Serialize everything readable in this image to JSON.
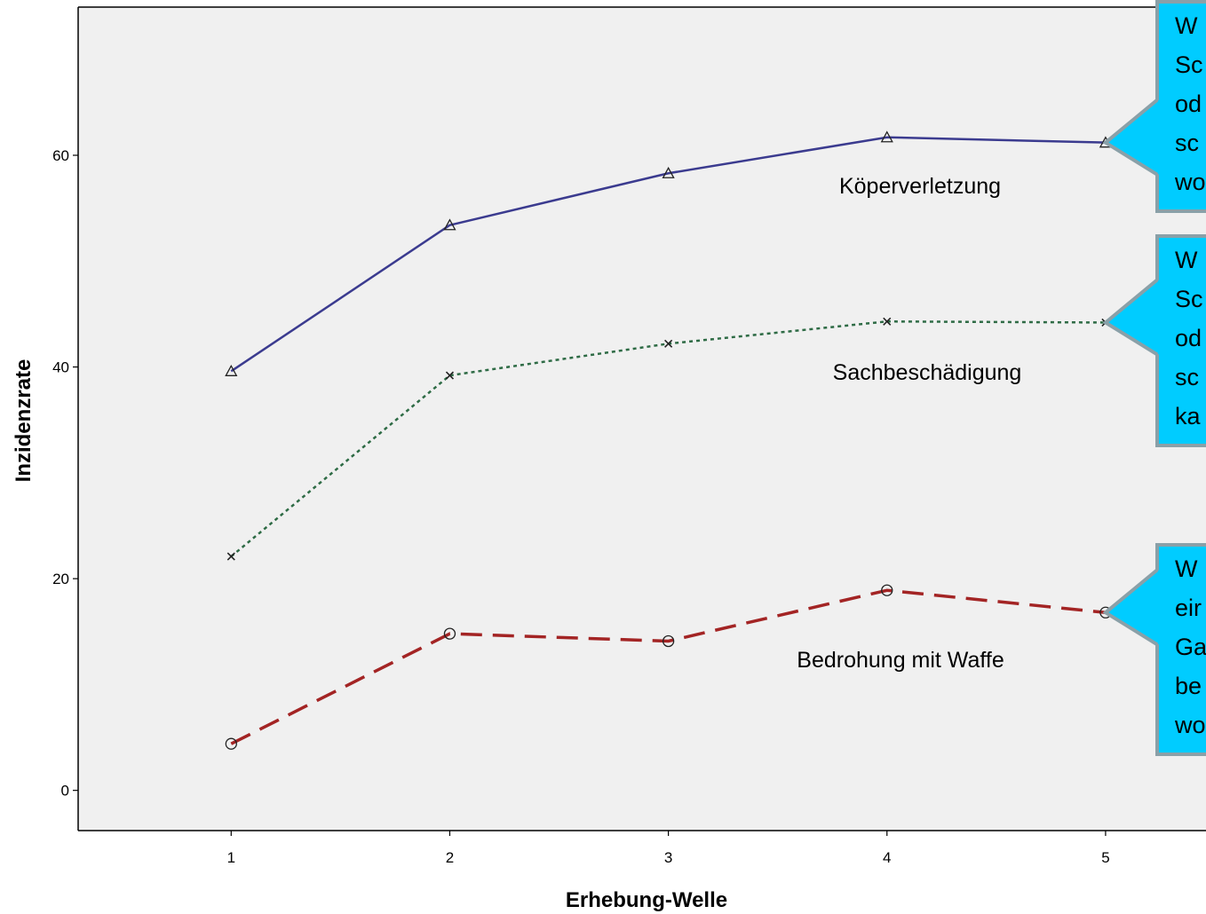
{
  "chart_data": {
    "type": "line",
    "title": "",
    "xlabel": "Erhebung-Welle",
    "ylabel": "Inzidenzrate",
    "x": [
      1,
      2,
      3,
      4,
      5
    ],
    "x_ticks": [
      "1",
      "2",
      "3",
      "4",
      "5"
    ],
    "y_ticks": [
      "0",
      "20",
      "40",
      "60"
    ],
    "y_tick_values": [
      0,
      20,
      40,
      60
    ],
    "xlim": [
      0.3,
      5.5
    ],
    "ylim": [
      -3.8,
      74
    ],
    "grid": false,
    "legend": "none",
    "plot_background": "#f0f0f0",
    "series": [
      {
        "name": "Köperverletzung",
        "values": [
          39.6,
          53.4,
          58.3,
          61.7,
          61.2
        ],
        "color": "#3b3b8f",
        "dash": "solid",
        "marker": "triangle"
      },
      {
        "name": "Sachbeschädigung",
        "values": [
          22.1,
          39.2,
          42.2,
          44.3,
          44.2
        ],
        "color": "#2e6b45",
        "dash": "dotted",
        "marker": "x"
      },
      {
        "name": "Bedrohung mit Waffe",
        "values": [
          4.4,
          14.8,
          14.1,
          18.9,
          16.8
        ],
        "color": "#a32424",
        "dash": "dashed",
        "marker": "circle"
      }
    ],
    "callouts": [
      {
        "lines": [
          "W",
          "Sc",
          "od",
          "sc",
          "wo"
        ],
        "anchor_series": 0,
        "color": "#00ccff"
      },
      {
        "lines": [
          "W",
          "Sc",
          "od",
          "sc",
          "ka"
        ],
        "anchor_series": 1,
        "color": "#00ccff"
      },
      {
        "lines": [
          "W",
          "eir",
          "Ga",
          "be",
          "wo"
        ],
        "anchor_series": 2,
        "color": "#00ccff"
      }
    ]
  }
}
